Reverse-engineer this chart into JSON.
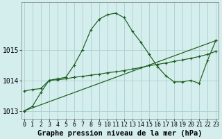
{
  "x": [
    0,
    1,
    2,
    3,
    4,
    5,
    6,
    7,
    8,
    9,
    10,
    11,
    12,
    13,
    14,
    15,
    16,
    17,
    18,
    19,
    20,
    21,
    22,
    23
  ],
  "line1": [
    1013.0,
    1013.15,
    1013.6,
    1014.0,
    1014.05,
    1014.1,
    1014.5,
    1015.0,
    1015.65,
    1016.0,
    1016.15,
    1016.2,
    1016.05,
    1015.6,
    1015.25,
    1014.85,
    1014.45,
    1014.15,
    1013.95,
    1013.95,
    1014.0,
    1013.9,
    1014.65,
    1015.3
  ],
  "line2": [
    1013.65,
    1013.7,
    1013.73,
    1014.0,
    1014.02,
    1014.05,
    1014.1,
    1014.13,
    1014.17,
    1014.2,
    1014.25,
    1014.28,
    1014.32,
    1014.37,
    1014.42,
    1014.48,
    1014.52,
    1014.57,
    1014.62,
    1014.67,
    1014.72,
    1014.78,
    1014.85,
    1014.95
  ],
  "line3_x": [
    0,
    23
  ],
  "line3_y": [
    1013.0,
    1015.3
  ],
  "ylim": [
    1012.75,
    1016.55
  ],
  "xlim": [
    -0.3,
    23.3
  ],
  "yticks": [
    1013,
    1014,
    1015
  ],
  "xticks": [
    0,
    1,
    2,
    3,
    4,
    5,
    6,
    7,
    8,
    9,
    10,
    11,
    12,
    13,
    14,
    15,
    16,
    17,
    18,
    19,
    20,
    21,
    22,
    23
  ],
  "xlabel": "Graphe pression niveau de la mer (hPa)",
  "bg_color": "#d4eeed",
  "grid_color": "#aacfce",
  "line_color": "#1a5c1a",
  "tick_fontsize": 6,
  "xlabel_fontsize": 7.5
}
